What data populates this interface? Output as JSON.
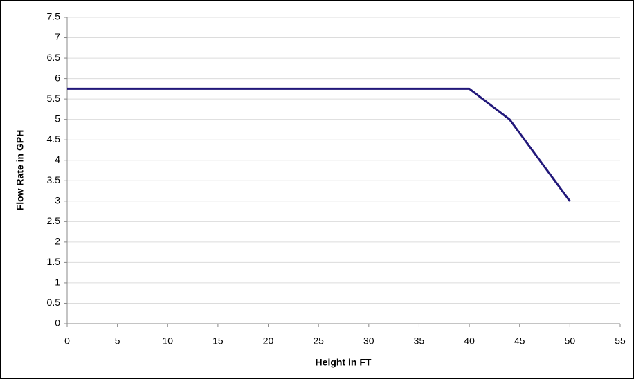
{
  "chart_data": {
    "type": "line",
    "x_label": "Height in FT",
    "y_label": "Flow Rate in GPH",
    "x": [
      0,
      40,
      44,
      50
    ],
    "series": [
      {
        "color": "#22187a",
        "values": [
          5.75,
          5.75,
          5.0,
          3.0
        ]
      }
    ],
    "xlim": [
      0,
      55
    ],
    "xticks": [
      0,
      5,
      10,
      15,
      20,
      25,
      30,
      35,
      40,
      45,
      50,
      55
    ],
    "ylim": [
      0,
      7.5
    ],
    "yticks": [
      0,
      0.5,
      1,
      1.5,
      2,
      2.5,
      3,
      3.5,
      4,
      4.5,
      5,
      5.5,
      6,
      6.5,
      7,
      7.5
    ],
    "grid": true
  }
}
